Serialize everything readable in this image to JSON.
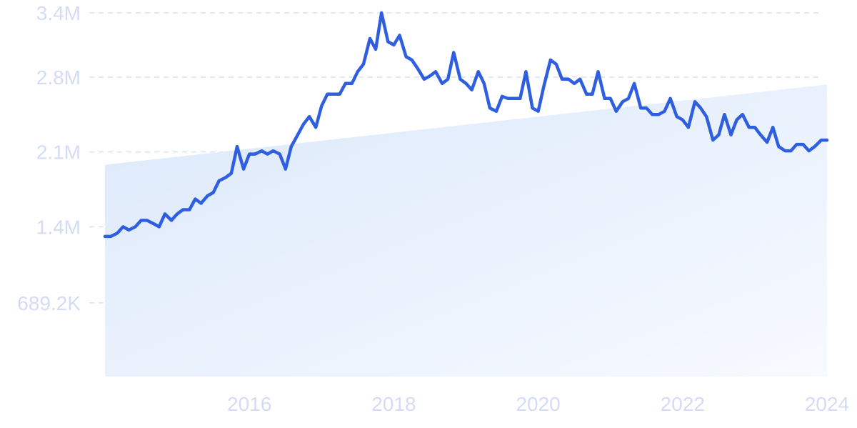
{
  "chart_data": {
    "type": "line",
    "title": "",
    "xlabel": "",
    "ylabel": "",
    "x_ticks": [
      "2016",
      "2018",
      "2020",
      "2022",
      "2024"
    ],
    "y_ticks": [
      "689.2K",
      "1.4M",
      "2.1M",
      "2.8M",
      "3.4M"
    ],
    "xlim": [
      2014.0,
      2024.0
    ],
    "ylim": [
      0,
      3400000
    ],
    "grid": true,
    "legend": "none",
    "colors": {
      "line": "#2f5fe0",
      "trend_fill": "#e3edfb",
      "axis_text": "#d3dcf4",
      "grid": "#d9e1f2"
    },
    "trend": {
      "start": {
        "x": 2014.0,
        "y": 1980000
      },
      "end": {
        "x": 2024.0,
        "y": 2730000
      }
    },
    "series": [
      {
        "x": [
          2014.0,
          2014.08,
          2014.17,
          2014.25,
          2014.33,
          2014.42,
          2014.5,
          2014.58,
          2014.67,
          2014.75,
          2014.83,
          2014.92,
          2015.0,
          2015.08,
          2015.17,
          2015.25,
          2015.33,
          2015.42,
          2015.5,
          2015.58,
          2015.67,
          2015.75,
          2015.83,
          2015.92,
          2016.0,
          2016.08,
          2016.17,
          2016.25,
          2016.33,
          2016.42,
          2016.5,
          2016.58,
          2016.67,
          2016.75,
          2016.83,
          2016.92,
          2017.0,
          2017.08,
          2017.17,
          2017.25,
          2017.33,
          2017.42,
          2017.5,
          2017.58,
          2017.67,
          2017.75,
          2017.83,
          2017.92,
          2018.0,
          2018.08,
          2018.17,
          2018.25,
          2018.33,
          2018.42,
          2018.5,
          2018.58,
          2018.67,
          2018.75,
          2018.83,
          2018.92,
          2019.0,
          2019.08,
          2019.17,
          2019.25,
          2019.33,
          2019.42,
          2019.5,
          2019.58,
          2019.67,
          2019.75,
          2019.83,
          2019.92,
          2020.0,
          2020.08,
          2020.17,
          2020.25,
          2020.33,
          2020.42,
          2020.5,
          2020.58,
          2020.67,
          2020.75,
          2020.83,
          2020.92,
          2021.0,
          2021.08,
          2021.17,
          2021.25,
          2021.33,
          2021.42,
          2021.5,
          2021.58,
          2021.67,
          2021.75,
          2021.83,
          2021.92,
          2022.0,
          2022.08,
          2022.17,
          2022.25,
          2022.33,
          2022.42,
          2022.5,
          2022.58,
          2022.67,
          2022.75,
          2022.83,
          2022.92,
          2023.0,
          2023.08,
          2023.17,
          2023.25,
          2023.33,
          2023.42,
          2023.5,
          2023.58,
          2023.67,
          2023.75,
          2023.83,
          2023.92,
          2024.0
        ],
        "values": [
          1310000,
          1310000,
          1340000,
          1400000,
          1370000,
          1400000,
          1460000,
          1460000,
          1430000,
          1400000,
          1520000,
          1460000,
          1520000,
          1560000,
          1560000,
          1660000,
          1620000,
          1690000,
          1720000,
          1830000,
          1860000,
          1900000,
          2150000,
          1940000,
          2080000,
          2080000,
          2110000,
          2080000,
          2110000,
          2080000,
          1940000,
          2150000,
          2260000,
          2360000,
          2430000,
          2330000,
          2530000,
          2640000,
          2640000,
          2640000,
          2740000,
          2740000,
          2850000,
          2920000,
          3160000,
          3060000,
          3400000,
          3130000,
          3100000,
          3190000,
          2990000,
          2960000,
          2880000,
          2780000,
          2810000,
          2850000,
          2740000,
          2780000,
          3030000,
          2780000,
          2740000,
          2680000,
          2850000,
          2740000,
          2510000,
          2480000,
          2620000,
          2600000,
          2600000,
          2600000,
          2850000,
          2510000,
          2480000,
          2720000,
          2960000,
          2920000,
          2780000,
          2780000,
          2740000,
          2780000,
          2640000,
          2640000,
          2850000,
          2600000,
          2600000,
          2480000,
          2570000,
          2600000,
          2740000,
          2510000,
          2510000,
          2450000,
          2450000,
          2480000,
          2600000,
          2430000,
          2400000,
          2330000,
          2570000,
          2510000,
          2430000,
          2210000,
          2260000,
          2450000,
          2260000,
          2400000,
          2450000,
          2330000,
          2330000,
          2260000,
          2190000,
          2330000,
          2150000,
          2110000,
          2110000,
          2170000,
          2170000,
          2110000,
          2150000,
          2210000,
          2210000
        ]
      }
    ]
  }
}
